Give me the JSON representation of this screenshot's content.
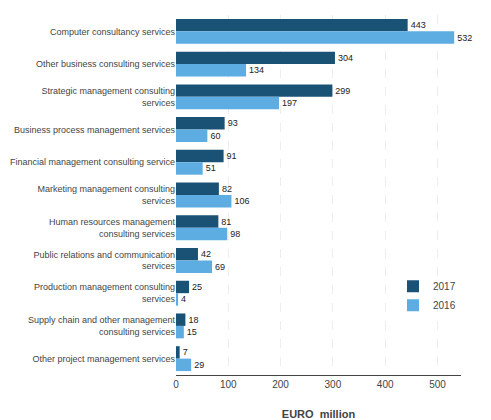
{
  "chart_data": {
    "type": "bar",
    "orientation": "horizontal",
    "categories": [
      "Computer consultancy services",
      "Other business consulting services",
      "Strategic management consulting\nservices",
      "Business process management services",
      "Financial management consulting service",
      "Marketing management consulting\nservices",
      "Human resources management\nconsulting services",
      "Public relations and communication\nservices",
      "Production management consulting\nservices",
      "Supply chain and other management\nconsulting services",
      "Other project management services"
    ],
    "series": [
      {
        "name": "2017",
        "color": "#1a5276",
        "values": [
          443,
          304,
          299,
          93,
          91,
          82,
          81,
          42,
          25,
          18,
          7
        ]
      },
      {
        "name": "2016",
        "color": "#5dade2",
        "values": [
          532,
          134,
          197,
          60,
          51,
          106,
          98,
          69,
          4,
          15,
          29
        ]
      }
    ],
    "xlabel": "EURO  million",
    "xlim": [
      0,
      545
    ],
    "xticks": [
      0,
      100,
      200,
      300,
      400,
      500
    ],
    "grid": true,
    "data_labels": true,
    "legend": "lower right"
  }
}
